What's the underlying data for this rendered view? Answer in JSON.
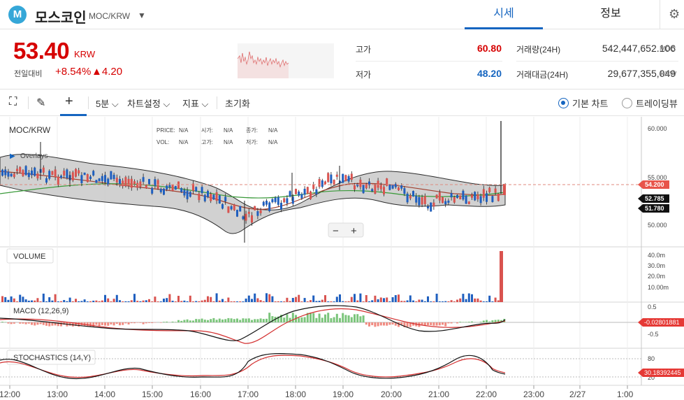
{
  "header": {
    "logo_letter": "M",
    "coin_name": "모스코인",
    "pair": "MOC/KRW",
    "tabs": [
      {
        "label": "시세",
        "active": true
      },
      {
        "label": "정보",
        "active": false
      }
    ]
  },
  "summary": {
    "price": "53.40",
    "price_unit": "KRW",
    "change_label": "전일대비",
    "change_rate": "+8.54%",
    "change_amount": "▲4.20",
    "high_label": "고가",
    "high_value": "60.80",
    "low_label": "저가",
    "low_value": "48.20",
    "volume_label": "거래량(24H)",
    "volume_value": "542,447,652.106",
    "volume_unit": "MOC",
    "amount_label": "거래대금(24H)",
    "amount_value": "29,677,355,049",
    "amount_unit": "KRW",
    "colors": {
      "up": "#d60000",
      "down": "#1565c0"
    }
  },
  "toolbar": {
    "interval": "5분",
    "chart_settings": "차트설정",
    "indicators": "지표",
    "reset": "초기화",
    "basic_chart": "기본 차트",
    "tradingview": "트레이딩뷰"
  },
  "chart": {
    "symbol": "MOC/KRW",
    "overlays_label": "Overlays",
    "ohlc": {
      "price_label": "PRICE:",
      "price_val": "N/A",
      "open_label": "시가:",
      "open_val": "N/A",
      "close_label": "종가:",
      "close_val": "N/A",
      "vol_label": "VOL:",
      "vol_val": "N/A",
      "high_label": "고가:",
      "high_val": "N/A",
      "low_label": "저가:",
      "low_val": "N/A"
    },
    "zoom_out": "−",
    "zoom_in": "+",
    "price_ticks": [
      "60.000",
      "55.000",
      "50.000"
    ],
    "price_badges": {
      "last": "54.200",
      "mid": "52.785",
      "low": "51.780"
    },
    "volume_title": "VOLUME",
    "volume_ticks": [
      "40.0m",
      "30.0m",
      "20.0m",
      "10.00m"
    ],
    "macd_title": "MACD (12,26,9)",
    "macd_ticks": [
      "0.5",
      "-0.5"
    ],
    "macd_badge": "-0.02801881",
    "stoch_title": "STOCHASTICS (14,Y)",
    "stoch_ticks": [
      "80",
      "20"
    ],
    "stoch_badge": "30.18392445",
    "time_ticks": [
      "12:00",
      "13:00",
      "14:00",
      "15:00",
      "16:00",
      "17:00",
      "18:00",
      "19:00",
      "20:00",
      "21:00",
      "22:00",
      "23:00",
      "2/27",
      "1:00"
    ]
  }
}
